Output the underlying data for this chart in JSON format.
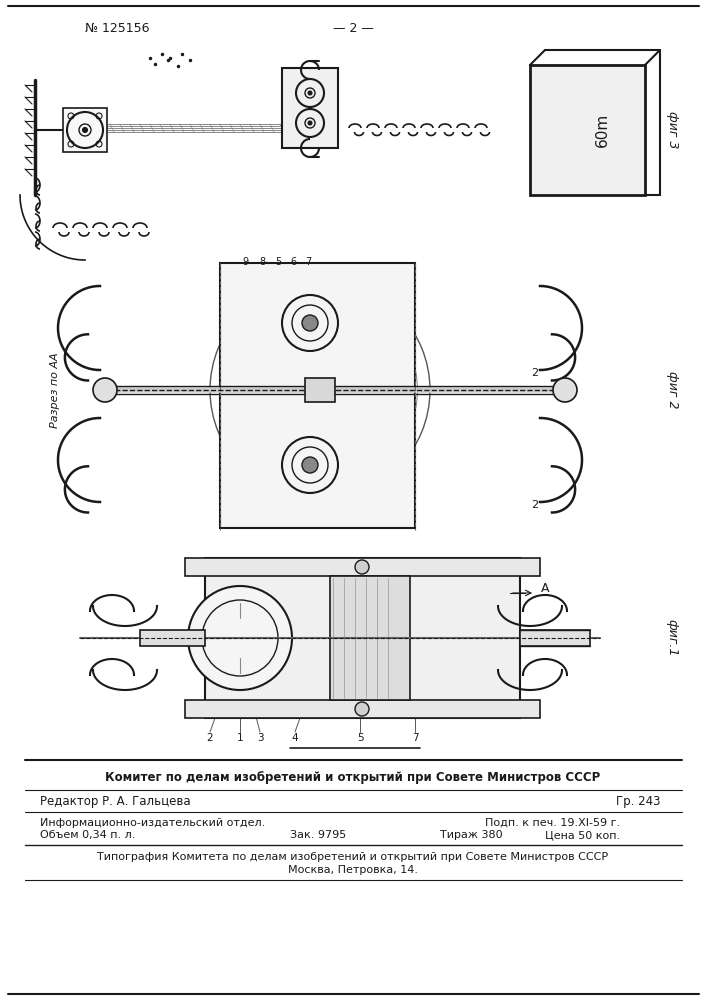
{
  "header_number": "№ 125156",
  "header_page": "— 2 —",
  "footer_bold": "Комитег по делам изобретений и открытий при Совете Министров СССР",
  "footer_editor": "Редактор Р. А. Гальцева",
  "footer_gr": "Гр. 243",
  "footer_info": "Информационно-издательский отдел.",
  "footer_podp": "Подп. к печ. 19.ХI-59 г.",
  "footer_obem": "Объем 0,34 п. л.",
  "footer_zak": "Зак. 9795",
  "footer_tirazh": "Тираж 380",
  "footer_cena": "Цена 50 коп.",
  "footer_tipogr": "Типография Комитета по делам изобретений и открытий при Совете Министров СССР",
  "footer_moskva": "Москва, Петровка, 14.",
  "fig1_label": "фиг.1",
  "fig2_label": "фиг 2",
  "fig3_label": "фиг 3",
  "section_label": "Разрез по АА",
  "weight_label": "60m",
  "bg_color": "#ffffff",
  "lc": "#1a1a1a"
}
